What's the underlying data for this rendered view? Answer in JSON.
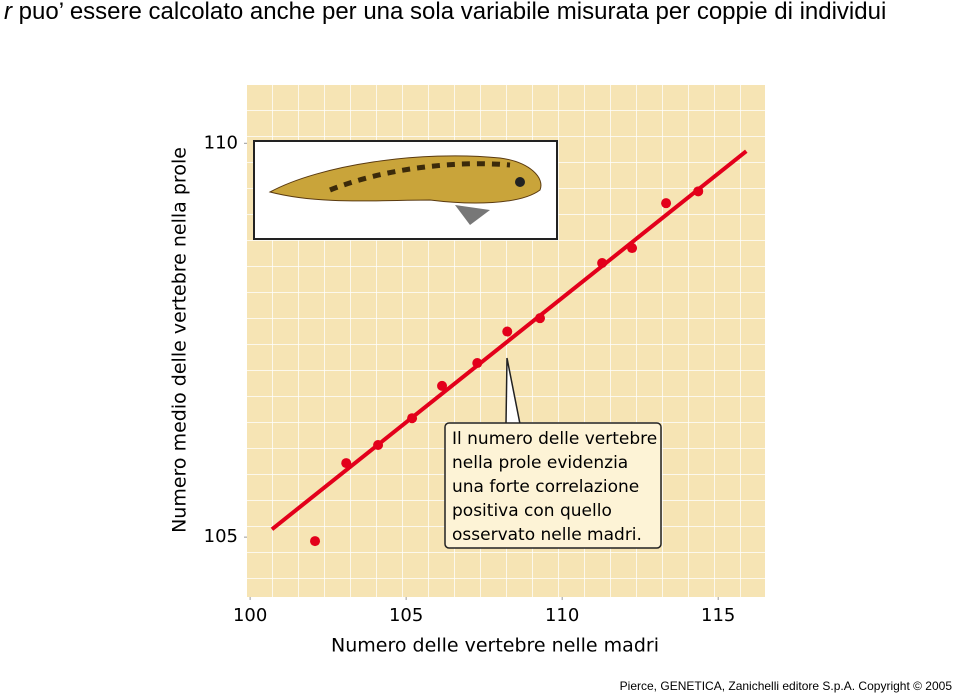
{
  "slide": {
    "title_symbol": "r",
    "title": "puo’ essere calcolato anche per una sola variabile misurata per coppie di individui",
    "footer": "Pierce, GENETICA,  Zanichelli editore S.p.A. Copyright © 2005"
  },
  "chart_data": {
    "type": "scatter",
    "x_label": "Numero delle vertebre nelle madri",
    "y_label": "Numero medio delle vertebre nella prole",
    "x": [
      102.08,
      103.08,
      104.1,
      105.19,
      106.15,
      107.28,
      108.24,
      109.29,
      111.28,
      112.24,
      113.33,
      114.36
    ],
    "series": [
      {
        "color": "#e3001b",
        "values": [
          104.95,
          105.94,
          106.17,
          106.51,
          106.92,
          107.21,
          107.61,
          107.78,
          108.48,
          108.67,
          109.24,
          109.39
        ]
      }
    ],
    "trend_line": {
      "color": "#e3001b",
      "x": [
        100.7,
        115.9
      ],
      "y": [
        105.1,
        109.9
      ]
    },
    "xlim": [
      99.9,
      116.5
    ],
    "ylim": [
      104.24,
      110.74
    ],
    "xticks": [
      100,
      105,
      110,
      115
    ],
    "yticks": [
      105,
      110
    ],
    "annotation": [
      "Il numero delle vertebre",
      "nella prole evidenzia",
      "una forte correlazione",
      "positiva con quello",
      "osservato nelle madri."
    ]
  }
}
